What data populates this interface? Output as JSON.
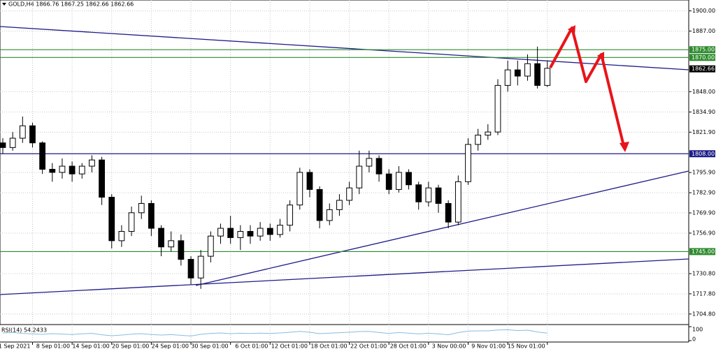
{
  "header": "GOLD,H4  1866.76 1867.25 1862.66 1862.66",
  "chart_data": {
    "type": "candlestick",
    "color_up": "#ffffff",
    "color_down": "#000000",
    "outline": "#000000",
    "ylim": [
      1698,
      1907
    ],
    "yticks": [
      {
        "value": 1900,
        "label": "1900.00"
      },
      {
        "value": 1887,
        "label": "1887.00"
      },
      {
        "value": 1848,
        "label": "1848.00"
      },
      {
        "value": 1834.9,
        "label": "1834.90"
      },
      {
        "value": 1821.9,
        "label": "1821.90"
      },
      {
        "value": 1795.9,
        "label": "1795.90"
      },
      {
        "value": 1782.9,
        "label": "1782.90"
      },
      {
        "value": 1769.9,
        "label": "1769.90"
      },
      {
        "value": 1756.9,
        "label": "1756.90"
      },
      {
        "value": 1730.8,
        "label": "1730.80"
      },
      {
        "value": 1717.8,
        "label": "1717.80"
      },
      {
        "value": 1704.8,
        "label": "1704.80"
      }
    ],
    "xlim": [
      0,
      69
    ],
    "xticks": [
      {
        "value": 3,
        "label": "1 Sep 2021"
      },
      {
        "value": 7,
        "label": "8 Sep 01:00"
      },
      {
        "value": 11,
        "label": "14 Sep 01:00"
      },
      {
        "value": 15,
        "label": "20 Sep 01:00"
      },
      {
        "value": 19,
        "label": "24 Sep 01:00"
      },
      {
        "value": 23,
        "label": "30 Sep 01:00"
      },
      {
        "value": 27,
        "label": "6 Oct 01:00"
      },
      {
        "value": 31,
        "label": "12 Oct 01:00"
      },
      {
        "value": 35,
        "label": "18 Oct 01:00"
      },
      {
        "value": 39,
        "label": "22 Oct 01:00"
      },
      {
        "value": 43,
        "label": "28 Oct 01:00"
      },
      {
        "value": 47,
        "label": "3 Nov 00:00"
      },
      {
        "value": 51,
        "label": "9 Nov 01:00"
      },
      {
        "value": 55,
        "label": "15 Nov 01:00"
      }
    ],
    "grid": true,
    "open": [
      1815,
      1812,
      1818,
      1826,
      1815,
      1798,
      1796,
      1800,
      1795,
      1800,
      1804,
      1780,
      1752,
      1758,
      1770,
      1776,
      1760,
      1748,
      1752,
      1740,
      1728,
      1742,
      1755,
      1760,
      1754,
      1758,
      1755,
      1760,
      1756,
      1762,
      1775,
      1796,
      1785,
      1765,
      1772,
      1778,
      1786,
      1800,
      1805,
      1795,
      1785,
      1796,
      1788,
      1777,
      1786,
      1776,
      1764,
      1790,
      1814,
      1820,
      1822,
      1852,
      1862,
      1858,
      1866,
      1852
    ],
    "high": [
      1818,
      1822,
      1832,
      1828,
      1816,
      1802,
      1805,
      1803,
      1802,
      1807,
      1806,
      1782,
      1762,
      1774,
      1781,
      1778,
      1762,
      1758,
      1756,
      1742,
      1746,
      1758,
      1763,
      1768,
      1762,
      1762,
      1764,
      1763,
      1766,
      1778,
      1799,
      1798,
      1787,
      1776,
      1782,
      1790,
      1810,
      1810,
      1807,
      1798,
      1800,
      1798,
      1790,
      1790,
      1788,
      1778,
      1794,
      1818,
      1824,
      1827,
      1856,
      1868,
      1868,
      1872,
      1877,
      1868
    ],
    "low": [
      1808,
      1810,
      1815,
      1812,
      1795,
      1790,
      1792,
      1790,
      1792,
      1796,
      1775,
      1747,
      1748,
      1755,
      1766,
      1755,
      1742,
      1745,
      1736,
      1724,
      1721,
      1738,
      1750,
      1750,
      1746,
      1750,
      1752,
      1752,
      1754,
      1758,
      1772,
      1780,
      1760,
      1762,
      1768,
      1775,
      1782,
      1796,
      1790,
      1782,
      1783,
      1785,
      1772,
      1774,
      1770,
      1760,
      1762,
      1788,
      1810,
      1817,
      1820,
      1848,
      1852,
      1855,
      1850,
      1851
    ],
    "close": [
      1812,
      1818,
      1826,
      1815,
      1798,
      1796,
      1800,
      1795,
      1800,
      1804,
      1780,
      1752,
      1758,
      1770,
      1776,
      1760,
      1748,
      1752,
      1740,
      1728,
      1742,
      1755,
      1760,
      1754,
      1758,
      1755,
      1760,
      1756,
      1762,
      1775,
      1796,
      1785,
      1765,
      1772,
      1778,
      1786,
      1800,
      1805,
      1795,
      1785,
      1796,
      1788,
      1777,
      1786,
      1776,
      1764,
      1790,
      1814,
      1820,
      1822,
      1852,
      1862,
      1858,
      1866,
      1852,
      1863
    ],
    "levels": [
      {
        "value": 1875,
        "label": "1875.00",
        "color": "#2e8b2e"
      },
      {
        "value": 1870,
        "label": "1870.00",
        "color": "#2e8b2e"
      },
      {
        "value": 1808,
        "label": "1808.00",
        "color": "#1c1c8a"
      },
      {
        "value": 1745,
        "label": "1745.00",
        "color": "#2e8b2e"
      }
    ],
    "price": {
      "value": 1862.66,
      "label": "1862.66",
      "color": "#000000"
    },
    "rsi": {
      "label": "RSI(14) 54.2433",
      "ylim": [
        0,
        100
      ],
      "yticks": [
        {
          "value": 100,
          "label": "100"
        },
        {
          "value": 0,
          "label": "0"
        }
      ],
      "color": "#87bde0",
      "values": [
        55,
        58,
        52,
        48,
        45,
        50,
        47,
        44,
        49,
        52,
        42,
        35,
        40,
        46,
        50,
        44,
        40,
        43,
        38,
        33,
        45,
        52,
        55,
        50,
        53,
        51,
        54,
        52,
        55,
        60,
        66,
        60,
        50,
        54,
        57,
        60,
        65,
        66,
        58,
        52,
        58,
        54,
        48,
        53,
        48,
        42,
        58,
        68,
        70,
        70,
        76,
        78,
        72,
        75,
        62,
        54
      ]
    }
  }
}
